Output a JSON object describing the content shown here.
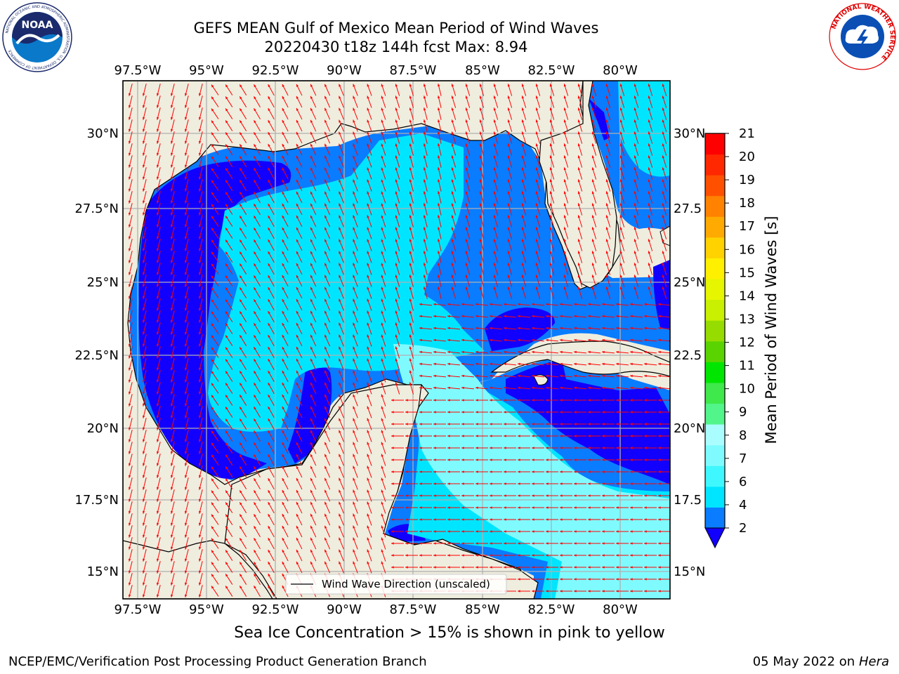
{
  "title": {
    "line1": "GEFS MEAN Gulf of Mexico Mean Period of Wind Waves",
    "line2": "20220430 t18z 144h fcst   Max: 8.94"
  },
  "logos": {
    "noaa_text": "NOAA",
    "noaa_ring": "NATIONAL OCEANIC AND ATMOSPHERIC ADMINISTRATION",
    "noaa_ring_bottom": "U.S. DEPARTMENT OF COMMERCE",
    "nws_ring": "NATIONAL WEATHER SERVICE"
  },
  "map": {
    "lon_labels": [
      "97.5°W",
      "95°W",
      "92.5°W",
      "90°W",
      "87.5°W",
      "85°W",
      "82.5°W",
      "80°W"
    ],
    "lat_labels": [
      "30°N",
      "27.5°N",
      "25°N",
      "22.5°N",
      "20°N",
      "17.5°N",
      "15°N"
    ],
    "lat_labels_right": [
      "30°N",
      "27.5",
      "25°N",
      "22.5",
      "20°N",
      "17.5",
      "15°N"
    ],
    "legend_label": "Wind Wave Direction (unscaled)",
    "land_color": "#efedde",
    "arrow_color": "#ff0000"
  },
  "colorbar": {
    "label": "Mean Period of Wind Waves [s]",
    "ticks": [
      "2",
      "4",
      "6",
      "7",
      "8",
      "9",
      "10",
      "11",
      "12",
      "13",
      "14",
      "15",
      "16",
      "17",
      "18",
      "19",
      "20",
      "21"
    ],
    "colors": [
      "#0a7cff",
      "#00e5ff",
      "#3ff7ff",
      "#7ffbff",
      "#aafdff",
      "#52f58a",
      "#3fe84b",
      "#00e600",
      "#5ad400",
      "#96dc00",
      "#c8f000",
      "#e6f500",
      "#fff000",
      "#ffd200",
      "#ffaa00",
      "#ff8200",
      "#ff5000",
      "#ff2800",
      "#ff0000"
    ],
    "under_color": "#1200ff"
  },
  "footer": {
    "note": "Sea Ice Concentration > 15% is shown in pink to yellow",
    "left": "NCEP/EMC/Verification Post Processing Product Generation Branch",
    "right_prefix": "05 May 2022 on",
    "right_host": "Hera"
  }
}
